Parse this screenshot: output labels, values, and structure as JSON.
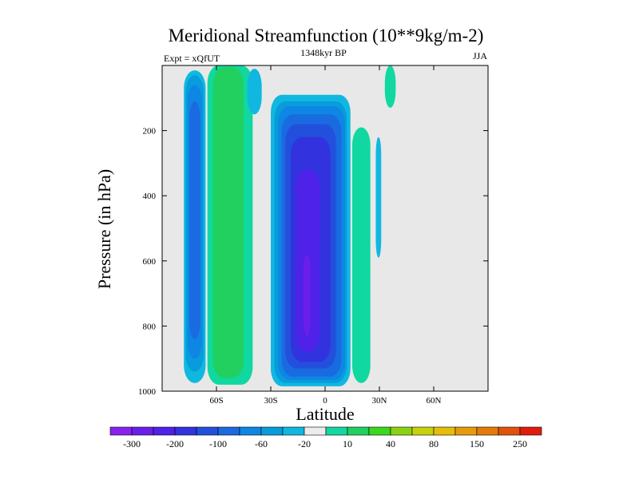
{
  "chart_data": {
    "type": "contour",
    "title": "Meridional Streamfunction (10**9kg/m-2)",
    "left_label": "Expt = xQfUT",
    "center_label": "1348kyr BP",
    "right_label": "JJA",
    "xlabel": "Latitude",
    "ylabel": "Pressure (in hPa)",
    "xlim": [
      -90,
      90
    ],
    "ylim": [
      1000,
      0
    ],
    "x_ticks": [
      {
        "value": -60,
        "label": "60S"
      },
      {
        "value": -30,
        "label": "30S"
      },
      {
        "value": 0,
        "label": "0"
      },
      {
        "value": 30,
        "label": "30N"
      },
      {
        "value": 60,
        "label": "60N"
      }
    ],
    "y_ticks": [
      {
        "value": 200,
        "label": "200"
      },
      {
        "value": 400,
        "label": "400"
      },
      {
        "value": 600,
        "label": "600"
      },
      {
        "value": 800,
        "label": "800"
      },
      {
        "value": 1000,
        "label": "1000"
      }
    ],
    "background_color": "#e8e8e8",
    "colorbar": {
      "colors": [
        "#8a22ee",
        "#6a1eea",
        "#4e22e8",
        "#3232de",
        "#2250dc",
        "#1a6ae0",
        "#0e86e4",
        "#089cdc",
        "#10b8e0",
        "#ececec",
        "#10d8a0",
        "#22d060",
        "#3cd81e",
        "#8cd214",
        "#c8d20c",
        "#e6be0a",
        "#e69c0a",
        "#e67a0a",
        "#e2520c",
        "#e01c0c"
      ],
      "labels": [
        {
          "after_bin": 1,
          "label": "-300"
        },
        {
          "after_bin": 3,
          "label": "-200"
        },
        {
          "after_bin": 5,
          "label": "-100"
        },
        {
          "after_bin": 7,
          "label": "-60"
        },
        {
          "after_bin": 9,
          "label": "-20"
        },
        {
          "after_bin": 11,
          "label": "10"
        },
        {
          "after_bin": 13,
          "label": "40"
        },
        {
          "after_bin": 15,
          "label": "80"
        },
        {
          "after_bin": 17,
          "label": "150"
        },
        {
          "after_bin": 19,
          "label": "250"
        }
      ]
    },
    "regions": [
      {
        "name": "southern-polar-cell",
        "sign": "negative",
        "levels": [
          {
            "color": "#10b8e0",
            "lat": [
              -78,
              -66
            ],
            "p": [
              15,
              975
            ]
          },
          {
            "color": "#089cdc",
            "lat": [
              -77,
              -67
            ],
            "p": [
              30,
              940
            ]
          },
          {
            "color": "#0e86e4",
            "lat": [
              -76,
              -68
            ],
            "p": [
              60,
              900
            ]
          },
          {
            "color": "#1a6ae0",
            "lat": [
              -75,
              -69
            ],
            "p": [
              110,
              840
            ]
          }
        ]
      },
      {
        "name": "southern-ferrel-cell",
        "sign": "positive",
        "levels": [
          {
            "color": "#10d8a0",
            "lat": [
              -65,
              -40
            ],
            "p": [
              0,
              980
            ]
          },
          {
            "color": "#22d060",
            "lat": [
              -62,
              -45
            ],
            "p": [
              5,
              960
            ]
          }
        ]
      },
      {
        "name": "upper-cyan-lobe-south",
        "sign": "negative",
        "levels": [
          {
            "color": "#10b8e0",
            "lat": [
              -43,
              -35
            ],
            "p": [
              10,
              150
            ]
          }
        ]
      },
      {
        "name": "hadley-cell",
        "sign": "negative",
        "levels": [
          {
            "color": "#10b8e0",
            "lat": [
              -30,
              14
            ],
            "p": [
              90,
              985
            ]
          },
          {
            "color": "#089cdc",
            "lat": [
              -28,
              12
            ],
            "p": [
              110,
              975
            ]
          },
          {
            "color": "#0e86e4",
            "lat": [
              -26,
              11
            ],
            "p": [
              125,
              965
            ]
          },
          {
            "color": "#1a6ae0",
            "lat": [
              -24,
              9
            ],
            "p": [
              150,
              955
            ]
          },
          {
            "color": "#2250dc",
            "lat": [
              -22,
              6
            ],
            "p": [
              180,
              930
            ]
          },
          {
            "color": "#3232de",
            "lat": [
              -19,
              3
            ],
            "p": [
              220,
              910
            ]
          },
          {
            "color": "#4e22e8",
            "lat": [
              -16,
              -3
            ],
            "p": [
              320,
              880
            ]
          },
          {
            "color": "#6a1eea",
            "lat": [
              -12,
              -8
            ],
            "p": [
              580,
              830
            ]
          }
        ]
      },
      {
        "name": "northern-green-strip",
        "sign": "positive",
        "levels": [
          {
            "color": "#10d8a0",
            "lat": [
              15,
              25
            ],
            "p": [
              190,
              975
            ]
          }
        ]
      },
      {
        "name": "northern-cyan-strip",
        "sign": "negative",
        "levels": [
          {
            "color": "#10b8e0",
            "lat": [
              28,
              31
            ],
            "p": [
              220,
              590
            ]
          }
        ]
      },
      {
        "name": "northern-upper-green",
        "sign": "positive",
        "levels": [
          {
            "color": "#10d8a0",
            "lat": [
              33,
              39
            ],
            "p": [
              0,
              130
            ]
          }
        ]
      }
    ]
  }
}
